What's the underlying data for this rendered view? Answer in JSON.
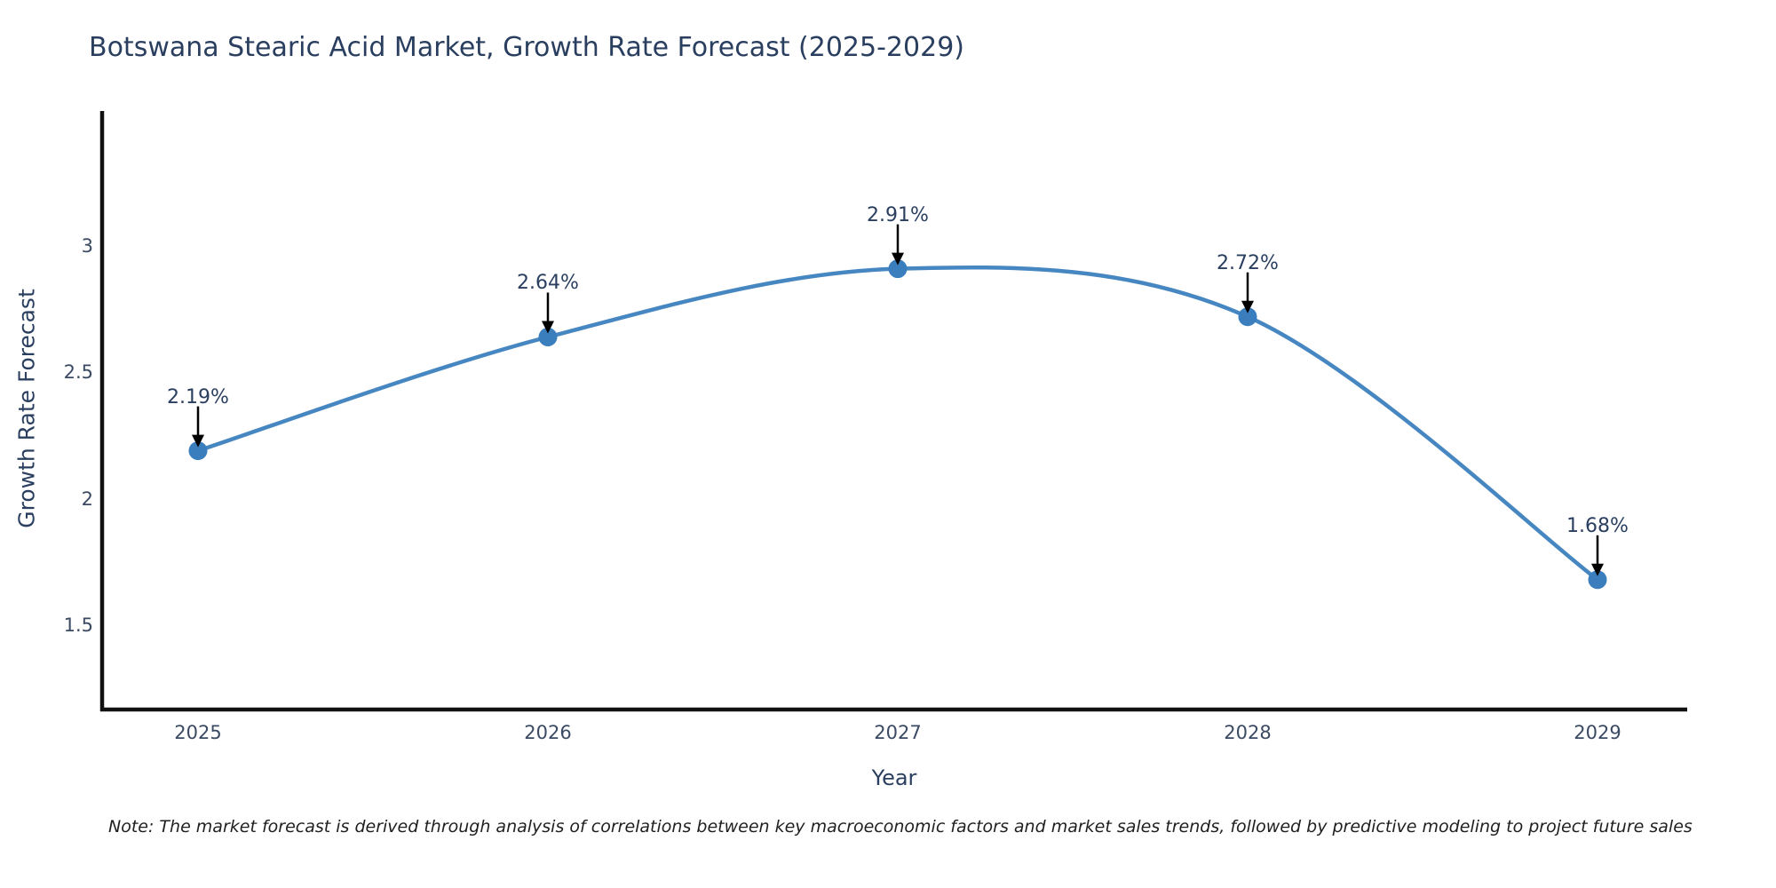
{
  "page": {
    "background": "#ffffff"
  },
  "chart_data": {
    "type": "line",
    "title": "Botswana Stearic Acid Market, Growth Rate Forecast (2025-2029)",
    "xlabel": "Year",
    "ylabel": "Growth Rate Forecast",
    "x": [
      2025,
      2026,
      2027,
      2028,
      2029
    ],
    "values": [
      2.19,
      2.64,
      2.91,
      2.72,
      1.68
    ],
    "point_labels": [
      "2.19%",
      "2.64%",
      "2.91%",
      "2.72%",
      "1.68%"
    ],
    "x_tick_labels": [
      "2025",
      "2026",
      "2027",
      "2028",
      "2029"
    ],
    "y_ticks": [
      3,
      2.5,
      2,
      1.5
    ],
    "y_tick_labels": [
      "3",
      "2.5",
      "2",
      "1.5"
    ],
    "ylim": [
      1.16,
      3.53
    ],
    "line_shape": "spline",
    "grid": false,
    "legend": "none",
    "annotations": "black down-arrows from each percentage label to its data point",
    "colors": {
      "line": "#4787c1",
      "marker": "#3a7ebd",
      "axis": "#111111",
      "title_text": "#2a3f5f",
      "tick_text": "#3b4a63",
      "arrow": "#000000"
    },
    "note": "Note: The market forecast is derived through analysis of correlations between key macroeconomic factors and market sales trends, followed by predictive modeling to project future sales"
  }
}
